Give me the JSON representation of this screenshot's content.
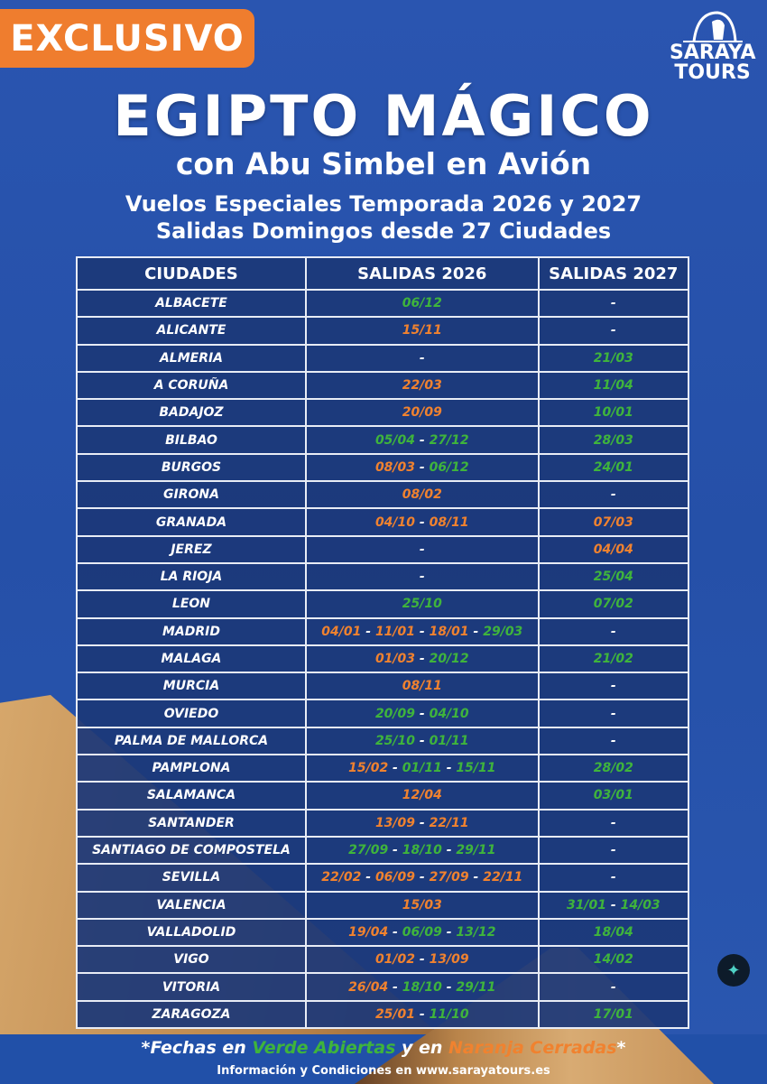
{
  "badge": "EXCLUSIVO",
  "logo": {
    "line1": "SARAYA",
    "line2": "TOURS"
  },
  "title": "EGIPTO MÁGICO",
  "subtitle": "con Abu Simbel en Avión",
  "tagline1": "Vuelos Especiales Temporada 2026 y 2027",
  "tagline2": "Salidas Domingos desde 27 Ciudades",
  "colors": {
    "open": "#3fb43c",
    "closed": "#f0822f",
    "background": "#2550a8",
    "badge": "#ef7d2e"
  },
  "table": {
    "headers": [
      "CIUDADES",
      "SALIDAS 2026",
      "SALIDAS 2027"
    ],
    "separator": "-",
    "empty": "-",
    "rows": [
      {
        "city": "ALBACETE",
        "s2026": [
          [
            "06/12",
            "g"
          ]
        ],
        "s2027": []
      },
      {
        "city": "ALICANTE",
        "s2026": [
          [
            "15/11",
            "o"
          ]
        ],
        "s2027": []
      },
      {
        "city": "ALMERIA",
        "s2026": [],
        "s2027": [
          [
            "21/03",
            "g"
          ]
        ]
      },
      {
        "city": "A CORUÑA",
        "s2026": [
          [
            "22/03",
            "o"
          ]
        ],
        "s2027": [
          [
            "11/04",
            "g"
          ]
        ]
      },
      {
        "city": "BADAJOZ",
        "s2026": [
          [
            "20/09",
            "o"
          ]
        ],
        "s2027": [
          [
            "10/01",
            "g"
          ]
        ]
      },
      {
        "city": "BILBAO",
        "s2026": [
          [
            "05/04",
            "g"
          ],
          [
            "27/12",
            "g"
          ]
        ],
        "s2027": [
          [
            "28/03",
            "g"
          ]
        ]
      },
      {
        "city": "BURGOS",
        "s2026": [
          [
            "08/03",
            "o"
          ],
          [
            "06/12",
            "g"
          ]
        ],
        "s2027": [
          [
            "24/01",
            "g"
          ]
        ]
      },
      {
        "city": "GIRONA",
        "s2026": [
          [
            "08/02",
            "o"
          ]
        ],
        "s2027": []
      },
      {
        "city": "GRANADA",
        "s2026": [
          [
            "04/10",
            "o"
          ],
          [
            "08/11",
            "o"
          ]
        ],
        "s2027": [
          [
            "07/03",
            "o"
          ]
        ]
      },
      {
        "city": "JEREZ",
        "s2026": [],
        "s2027": [
          [
            "04/04",
            "o"
          ]
        ]
      },
      {
        "city": "LA RIOJA",
        "s2026": [],
        "s2027": [
          [
            "25/04",
            "g"
          ]
        ]
      },
      {
        "city": "LEON",
        "s2026": [
          [
            "25/10",
            "g"
          ]
        ],
        "s2027": [
          [
            "07/02",
            "g"
          ]
        ]
      },
      {
        "city": "MADRID",
        "s2026": [
          [
            "04/01",
            "o"
          ],
          [
            "11/01",
            "o"
          ],
          [
            "18/01",
            "o"
          ],
          [
            "29/03",
            "g"
          ]
        ],
        "s2027": []
      },
      {
        "city": "MALAGA",
        "s2026": [
          [
            "01/03",
            "o"
          ],
          [
            "20/12",
            "g"
          ]
        ],
        "s2027": [
          [
            "21/02",
            "g"
          ]
        ]
      },
      {
        "city": "MURCIA",
        "s2026": [
          [
            "08/11",
            "o"
          ]
        ],
        "s2027": []
      },
      {
        "city": "OVIEDO",
        "s2026": [
          [
            "20/09",
            "g"
          ],
          [
            "04/10",
            "g"
          ]
        ],
        "s2027": []
      },
      {
        "city": "PALMA DE  MALLORCA",
        "s2026": [
          [
            "25/10",
            "g"
          ],
          [
            "01/11",
            "g"
          ]
        ],
        "s2027": []
      },
      {
        "city": "PAMPLONA",
        "s2026": [
          [
            "15/02",
            "o"
          ],
          [
            "01/11",
            "g"
          ],
          [
            "15/11",
            "g"
          ]
        ],
        "s2027": [
          [
            "28/02",
            "g"
          ]
        ]
      },
      {
        "city": "SALAMANCA",
        "s2026": [
          [
            "12/04",
            "o"
          ]
        ],
        "s2027": [
          [
            "03/01",
            "g"
          ]
        ]
      },
      {
        "city": "SANTANDER",
        "s2026": [
          [
            "13/09",
            "o"
          ],
          [
            "22/11",
            "o"
          ]
        ],
        "s2027": []
      },
      {
        "city": "SANTIAGO DE COMPOSTELA",
        "s2026": [
          [
            "27/09",
            "g"
          ],
          [
            "18/10",
            "g"
          ],
          [
            "29/11",
            "g"
          ]
        ],
        "s2027": []
      },
      {
        "city": "SEVILLA",
        "s2026": [
          [
            "22/02",
            "o"
          ],
          [
            "06/09",
            "o"
          ],
          [
            "27/09",
            "o"
          ],
          [
            "22/11",
            "o"
          ]
        ],
        "s2027": []
      },
      {
        "city": "VALENCIA",
        "s2026": [
          [
            "15/03",
            "o"
          ]
        ],
        "s2027": [
          [
            "31/01",
            "g"
          ],
          [
            "14/03",
            "g"
          ]
        ]
      },
      {
        "city": "VALLADOLID",
        "s2026": [
          [
            "19/04",
            "o"
          ],
          [
            "06/09",
            "g"
          ],
          [
            "13/12",
            "g"
          ]
        ],
        "s2027": [
          [
            "18/04",
            "g"
          ]
        ]
      },
      {
        "city": "VIGO",
        "s2026": [
          [
            "01/02",
            "o"
          ],
          [
            "13/09",
            "o"
          ]
        ],
        "s2027": [
          [
            "14/02",
            "g"
          ]
        ]
      },
      {
        "city": "VITORIA",
        "s2026": [
          [
            "26/04",
            "o"
          ],
          [
            "18/10",
            "g"
          ],
          [
            "29/11",
            "g"
          ]
        ],
        "s2027": []
      },
      {
        "city": "ZARAGOZA",
        "s2026": [
          [
            "25/01",
            "o"
          ],
          [
            "11/10",
            "g"
          ]
        ],
        "s2027": [
          [
            "17/01",
            "g"
          ]
        ]
      }
    ]
  },
  "note": {
    "p1": "*Fechas en ",
    "green": "Verde Abiertas",
    "p2": " y en ",
    "orange": "Naranja Cerradas",
    "p3": "*"
  },
  "info": "Información y Condiciones en www.sarayatours.es"
}
